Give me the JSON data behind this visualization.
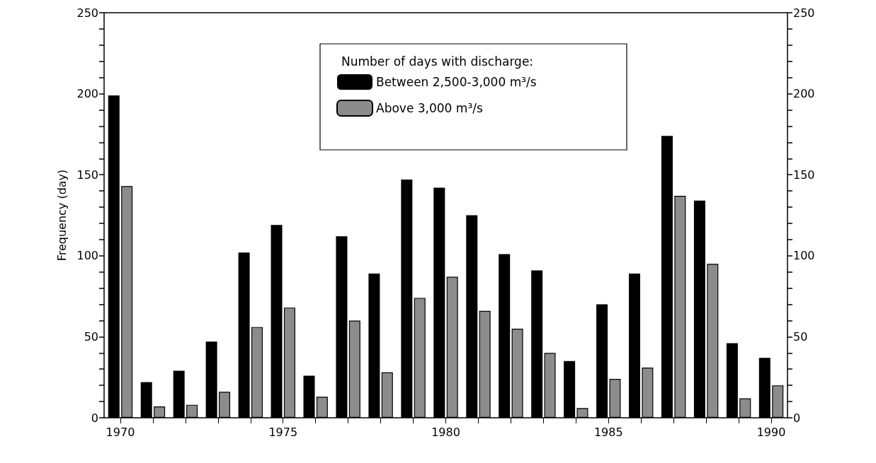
{
  "chart_data": {
    "type": "bar",
    "ylabel": "Frequency (day)",
    "legend_title": "Number of days with discharge:",
    "categories": [
      "1970",
      null,
      null,
      null,
      null,
      "1975",
      null,
      null,
      null,
      null,
      "1980",
      null,
      null,
      null,
      null,
      "1985",
      null,
      null,
      null,
      null,
      "1990"
    ],
    "series": [
      {
        "name": "Between 2,500-3,000 m³/s",
        "color": "#000000",
        "values": [
          199,
          22,
          29,
          47,
          102,
          119,
          26,
          112,
          89,
          147,
          142,
          125,
          101,
          91,
          35,
          70,
          89,
          174,
          134,
          46,
          37
        ]
      },
      {
        "name": "Above 3,000 m³/s",
        "color": "#8c8c8c",
        "values": [
          143,
          7,
          8,
          16,
          56,
          68,
          13,
          60,
          28,
          74,
          87,
          66,
          55,
          40,
          6,
          24,
          31,
          137,
          95,
          12,
          20
        ]
      }
    ],
    "ylim": [
      0,
      250
    ],
    "yticks": [
      0,
      {
        "value": 10,
        "label": null
      },
      {
        "value": 20,
        "label": null
      },
      {
        "value": 30,
        "label": null
      },
      {
        "value": 40,
        "label": null
      },
      50,
      {
        "value": 60,
        "label": null
      },
      {
        "value": 70,
        "label": null
      },
      {
        "value": 80,
        "label": null
      },
      {
        "value": 90,
        "label": null
      },
      100,
      {
        "value": 110,
        "label": null
      },
      {
        "value": 120,
        "label": null
      },
      {
        "value": 130,
        "label": null
      },
      {
        "value": 140,
        "label": null
      },
      150,
      {
        "value": 160,
        "label": null
      },
      {
        "value": 170,
        "label": null
      },
      {
        "value": 180,
        "label": null
      },
      {
        "value": 190,
        "label": null
      },
      200,
      {
        "value": 210,
        "label": null
      },
      {
        "value": 220,
        "label": null
      },
      {
        "value": 230,
        "label": null
      },
      {
        "value": 240,
        "label": null
      },
      250
    ],
    "y2lim": [
      0,
      250
    ],
    "y2ticks": [
      0,
      {
        "value": 10,
        "label": null
      },
      {
        "value": 20,
        "label": null
      },
      {
        "value": 30,
        "label": null
      },
      {
        "value": 40,
        "label": null
      },
      50,
      {
        "value": 60,
        "label": null
      },
      {
        "value": 70,
        "label": null
      },
      {
        "value": 80,
        "label": null
      },
      {
        "value": 90,
        "label": null
      },
      100,
      {
        "value": 110,
        "label": null
      },
      {
        "value": 120,
        "label": null
      },
      {
        "value": 130,
        "label": null
      },
      {
        "value": 140,
        "label": null
      },
      150,
      {
        "value": 160,
        "label": null
      },
      {
        "value": 170,
        "label": null
      },
      {
        "value": 180,
        "label": null
      },
      {
        "value": 190,
        "label": null
      },
      200,
      {
        "value": 210,
        "label": null
      },
      {
        "value": 220,
        "label": null
      },
      {
        "value": 230,
        "label": null
      },
      {
        "value": 240,
        "label": null
      },
      250
    ],
    "legend": "top",
    "grid": false
  }
}
